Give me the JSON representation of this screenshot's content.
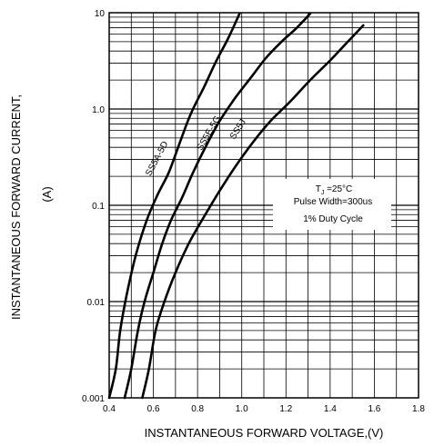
{
  "chart_data": {
    "type": "line",
    "xlabel": "INSTANTANEOUS FORWARD VOLTAGE,(V)",
    "ylabel_line1": "INSTANTANEOUS FORWARD CURRENT,",
    "ylabel_line2": "(A)",
    "xlim": [
      0.4,
      1.8
    ],
    "ylim": [
      0.001,
      10
    ],
    "yscale": "log",
    "grid": true,
    "x_ticks": [
      "0.4",
      "0.6",
      "0.8",
      "1.0",
      "1.2",
      "1.4",
      "1.6",
      "1.8"
    ],
    "y_ticks": [
      "0.001",
      "0.01",
      "0.1",
      "1.0",
      "10"
    ],
    "series": [
      {
        "name": "SS5A-5D",
        "x": [
          0.4,
          0.43,
          0.45,
          0.48,
          0.52,
          0.57,
          0.62,
          0.67,
          0.72,
          0.77,
          0.83,
          0.88,
          0.94,
          0.99
        ],
        "y": [
          0.001,
          0.002,
          0.005,
          0.012,
          0.03,
          0.07,
          0.13,
          0.22,
          0.45,
          0.9,
          1.7,
          3.0,
          5.5,
          9.8
        ]
      },
      {
        "name": "SS5E-5G",
        "x": [
          0.47,
          0.5,
          0.53,
          0.56,
          0.6,
          0.64,
          0.68,
          0.73,
          0.78,
          0.84,
          0.9,
          0.97,
          1.04,
          1.11,
          1.18,
          1.25,
          1.31
        ],
        "y": [
          0.001,
          0.002,
          0.005,
          0.01,
          0.02,
          0.04,
          0.07,
          0.12,
          0.22,
          0.42,
          0.75,
          1.3,
          2.1,
          3.4,
          5.0,
          7.0,
          9.8
        ]
      },
      {
        "name": "SS5J",
        "x": [
          0.55,
          0.58,
          0.61,
          0.65,
          0.7,
          0.76,
          0.82,
          0.89,
          0.97,
          1.05,
          1.13,
          1.22,
          1.31,
          1.4,
          1.48,
          1.55
        ],
        "y": [
          0.001,
          0.002,
          0.005,
          0.01,
          0.02,
          0.04,
          0.07,
          0.13,
          0.25,
          0.45,
          0.75,
          1.2,
          2.0,
          3.2,
          5.0,
          7.4
        ]
      }
    ],
    "annotation": {
      "line1_main": "T",
      "line1_sub": "J",
      "line1_rest": " =25°C",
      "line2": "Pulse Width=300us",
      "line3": "1% Duty Cycle"
    }
  }
}
